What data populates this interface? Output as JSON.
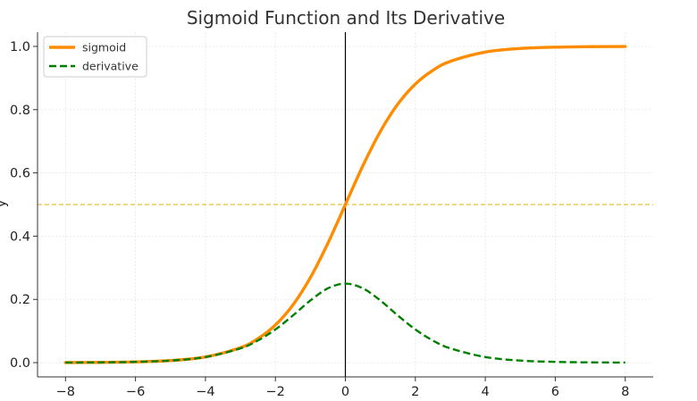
{
  "chart_data": {
    "type": "line",
    "title": "Sigmoid Function and Its Derivative",
    "xlabel": "",
    "ylabel": "y",
    "xlim": [
      -8.8,
      8.8
    ],
    "ylim": [
      -0.045,
      1.045
    ],
    "xticks": [
      -8,
      -6,
      -4,
      -2,
      0,
      2,
      4,
      6,
      8
    ],
    "xtick_labels": [
      "−8",
      "−6",
      "−4",
      "−2",
      "0",
      "2",
      "4",
      "6",
      "8"
    ],
    "yticks": [
      0.0,
      0.2,
      0.4,
      0.6,
      0.8,
      1.0
    ],
    "ytick_labels": [
      "0.0",
      "0.2",
      "0.4",
      "0.6",
      "0.8",
      "1.0"
    ],
    "grid": true,
    "legend_position": "top-left",
    "reference_lines": [
      {
        "orientation": "vertical",
        "value": 0,
        "color": "#000000",
        "style": "solid"
      },
      {
        "orientation": "horizontal",
        "value": 0.5,
        "color": "#e6ac00",
        "style": "dashed"
      }
    ],
    "x": [
      -8,
      -7,
      -6,
      -5,
      -4,
      -3,
      -2.5,
      -2,
      -1.5,
      -1,
      -0.5,
      0,
      0.5,
      1,
      1.5,
      2,
      2.5,
      3,
      4,
      5,
      6,
      7,
      8
    ],
    "series": [
      {
        "name": "sigmoid",
        "color": "#ff8c00",
        "style": "solid",
        "values": [
          0.0003,
          0.0009,
          0.0025,
          0.0067,
          0.018,
          0.0474,
          0.0759,
          0.1192,
          0.1824,
          0.2689,
          0.3775,
          0.5,
          0.6225,
          0.7311,
          0.8176,
          0.8808,
          0.9241,
          0.9526,
          0.982,
          0.9933,
          0.9975,
          0.9991,
          0.9997
        ]
      },
      {
        "name": "derivative",
        "color": "#008000",
        "style": "dashed",
        "values": [
          0.0003,
          0.0009,
          0.0025,
          0.0066,
          0.0177,
          0.0452,
          0.0701,
          0.105,
          0.1491,
          0.1966,
          0.235,
          0.25,
          0.235,
          0.1966,
          0.1491,
          0.105,
          0.0701,
          0.0452,
          0.0177,
          0.0066,
          0.0025,
          0.0009,
          0.0003
        ]
      }
    ]
  }
}
